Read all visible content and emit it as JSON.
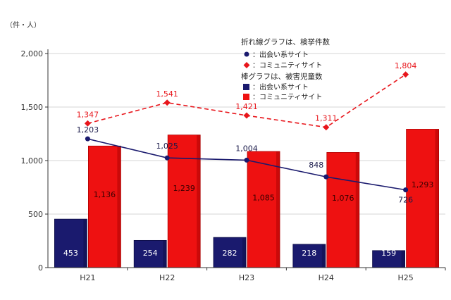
{
  "chart_data": {
    "type": "bar+line",
    "unit_label": "（件・人）",
    "categories": [
      "H21",
      "H22",
      "H23",
      "H24",
      "H25"
    ],
    "ylim": [
      0,
      2000
    ],
    "yticks": [
      0,
      500,
      1000,
      1500,
      2000
    ],
    "ytick_labels": [
      "0",
      "500",
      "1,000",
      "1,500",
      "2,000"
    ],
    "bar_series": [
      {
        "name": "：出会い系サイト",
        "color": "#1a1a6e",
        "values": [
          453,
          254,
          282,
          218,
          159
        ],
        "labels": [
          "453",
          "254",
          "282",
          "218",
          "159"
        ]
      },
      {
        "name": "：コミュニティサイト",
        "color": "#ee1111",
        "values": [
          1136,
          1239,
          1085,
          1076,
          1293
        ],
        "labels": [
          "1,136",
          "1,239",
          "1,085",
          "1,076",
          "1,293"
        ]
      }
    ],
    "line_series": [
      {
        "name": "：出会い系サイト",
        "color": "#1a1a6e",
        "marker": "circle",
        "style": "solid",
        "values": [
          1203,
          1025,
          1004,
          848,
          726
        ],
        "labels": [
          "1,203",
          "1,025",
          "1,004",
          "848",
          "726"
        ]
      },
      {
        "name": "：コミュニティサイト",
        "color": "#e8151b",
        "marker": "diamond",
        "style": "dashed",
        "values": [
          1347,
          1541,
          1421,
          1311,
          1804
        ],
        "labels": [
          "1,347",
          "1,541",
          "1,421",
          "1,311",
          "1,804"
        ]
      }
    ],
    "legend": {
      "line_heading": "折れ線グラフは、検挙件数",
      "bar_heading": "棒グラフは、被害児童数",
      "placement": "top-right"
    }
  }
}
